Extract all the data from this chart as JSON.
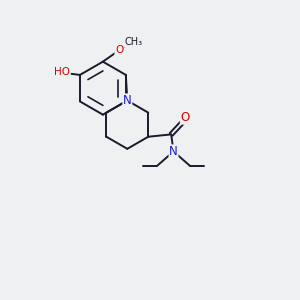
{
  "background_color": "#eef0f2",
  "bond_color": "#1a1a2e",
  "atom_colors": {
    "O": "#dd0000",
    "N": "#1a1acc",
    "C": "#1a1a2e"
  },
  "figsize": [
    3.0,
    3.0
  ],
  "dpi": 100,
  "lw": 1.4
}
